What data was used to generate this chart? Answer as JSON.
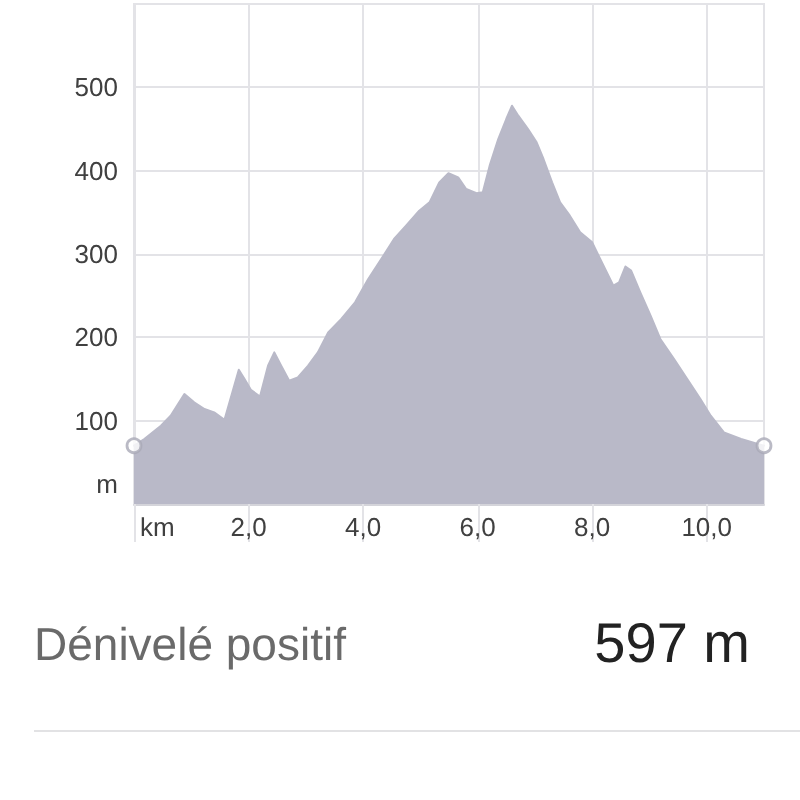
{
  "chart_data": {
    "type": "area",
    "xlabel": "km",
    "ylabel": "m",
    "series": [
      {
        "color": "#b9b9c8",
        "x": [
          0,
          0.18,
          0.47,
          0.64,
          0.88,
          1.05,
          1.23,
          1.4,
          1.58,
          1.83,
          1.93,
          2.04,
          2.2,
          2.34,
          2.45,
          2.57,
          2.71,
          2.86,
          3.04,
          3.21,
          3.39,
          3.62,
          3.86,
          4.09,
          4.3,
          4.54,
          4.75,
          4.98,
          5.16,
          5.33,
          5.49,
          5.66,
          5.8,
          5.98,
          6.09,
          6.21,
          6.36,
          6.5,
          6.6,
          6.71,
          6.88,
          7.03,
          7.15,
          7.3,
          7.44,
          7.61,
          7.79,
          8,
          8.14,
          8.37,
          8.47,
          8.58,
          8.68,
          8.84,
          9.02,
          9.19,
          9.43,
          9.66,
          9.89,
          10.07,
          10.3,
          10.6,
          11
        ],
        "values": [
          70,
          78,
          94,
          106,
          132,
          122,
          114,
          110,
          101,
          161,
          150,
          137,
          129,
          166,
          182,
          166,
          148,
          152,
          166,
          182,
          206,
          222,
          242,
          270,
          292,
          318,
          334,
          352,
          362,
          386,
          397,
          392,
          378,
          373,
          374,
          406,
          438,
          462,
          478,
          466,
          450,
          434,
          414,
          386,
          362,
          346,
          326,
          314,
          294,
          262,
          266,
          285,
          280,
          254,
          226,
          198,
          174,
          150,
          126,
          106,
          86,
          78,
          70
        ]
      },
      {
        "type": "scatter",
        "color": "#a9a9b6",
        "marker": "circle",
        "x": [
          0,
          11
        ],
        "values": [
          70,
          70
        ]
      }
    ],
    "xlim": [
      0,
      11
    ],
    "ylim": [
      0,
      600
    ],
    "xticks": [
      {
        "value": 0,
        "label": null
      },
      {
        "value": 2,
        "label": "2,0"
      },
      {
        "value": 4,
        "label": "4,0"
      },
      {
        "value": 6,
        "label": "6,0"
      },
      {
        "value": 8,
        "label": "8,0"
      },
      {
        "value": 10,
        "label": "10,0"
      }
    ],
    "yticks": [
      100,
      200,
      300,
      400,
      500
    ],
    "grid": true,
    "annotations": [
      "Dénivelé positif",
      "597 m"
    ]
  }
}
